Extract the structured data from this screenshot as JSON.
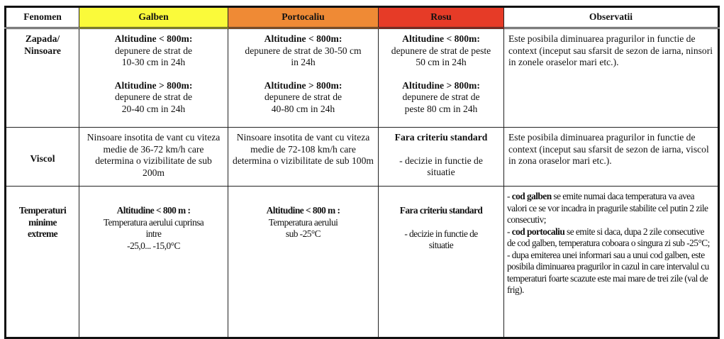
{
  "colors": {
    "galben": "#fafa3a",
    "portocaliu": "#ef8a35",
    "rosu": "#e63b27"
  },
  "headers": [
    "Fenomen",
    "Galben",
    "Portocaliu",
    "Rosu",
    "Observatii"
  ],
  "rows": [
    {
      "fenomen": [
        "Zapada/",
        "Ninsoare"
      ],
      "galben": {
        "h1": "Altitudine < 800m:",
        "t1": [
          "depunere de strat de",
          "10-30 cm in 24h"
        ],
        "h2": "Altitudine > 800m:",
        "t2": [
          "depunere de strat de",
          "20-40 cm in 24h"
        ]
      },
      "portocaliu": {
        "h1": "Altitudine < 800m:",
        "t1": [
          "depunere de strat de 30-50 cm",
          "in 24h"
        ],
        "h2": "Altitudine > 800m:",
        "t2": [
          "depunere de strat de",
          "40-80 cm in 24h"
        ]
      },
      "rosu": {
        "h1": "Altitudine < 800m:",
        "t1": [
          "depunere de strat de peste",
          "50 cm in 24h"
        ],
        "h2": "Altitudine > 800m:",
        "t2": [
          "depunere de strat de",
          "peste 80 cm in 24h"
        ]
      },
      "observatii": "Este posibila diminuarea pragurilor in functie de context (inceput sau sfarsit de sezon de iarna, ninsori in zonele oraselor mari etc.)."
    },
    {
      "fenomen": [
        "Viscol"
      ],
      "galben": "Ninsoare insotita de vant cu viteza medie de 36-72 km/h care determina o vizibilitate de sub 200m",
      "portocaliu": "Ninsoare insotita de vant cu viteza medie de 72-108 km/h care determina o vizibilitate de sub 100m",
      "rosu": {
        "h1": "Fara criteriu standard",
        "t1": "- decizie in functie de situatie"
      },
      "observatii": "Este posibila diminuarea pragurilor in functie de context (inceput sau sfarsit de sezon de iarna, viscol in zona oraselor mari etc.)."
    },
    {
      "fenomen": [
        "Temperaturi",
        "minime",
        "extreme"
      ],
      "galben": {
        "h1": "Altitudine < 800 m :",
        "t1": [
          "Temperatura aerului  cuprinsa",
          "intre",
          "-25,0... -15,0°C"
        ]
      },
      "portocaliu": {
        "h1": "Altitudine < 800 m :",
        "t1": [
          "Temperatura aerului",
          "sub -25°C"
        ]
      },
      "rosu": {
        "h1": "Fara criteriu standard",
        "t1": [
          "- decizie in functie de",
          "situatie"
        ]
      },
      "observatii": [
        {
          "b": "cod galben",
          "t": " se emite numai  daca temperatura va avea valori ce se vor incadra in pragurile stabilite cel putin 2 zile consecutiv;"
        },
        {
          "b": "cod portocaliu",
          "t": " se emite si daca, dupa 2 zile consecutive de cod galben, temperatura coboara o singura zi sub -25°C;"
        },
        {
          "b": "",
          "t": "dupa emiterea unei informari sau a unui cod galben, este posibila diminuarea pragurilor in cazul in care intervalul cu temperaturi foarte scazute este mai mare de trei zile (val de frig)."
        }
      ]
    }
  ]
}
